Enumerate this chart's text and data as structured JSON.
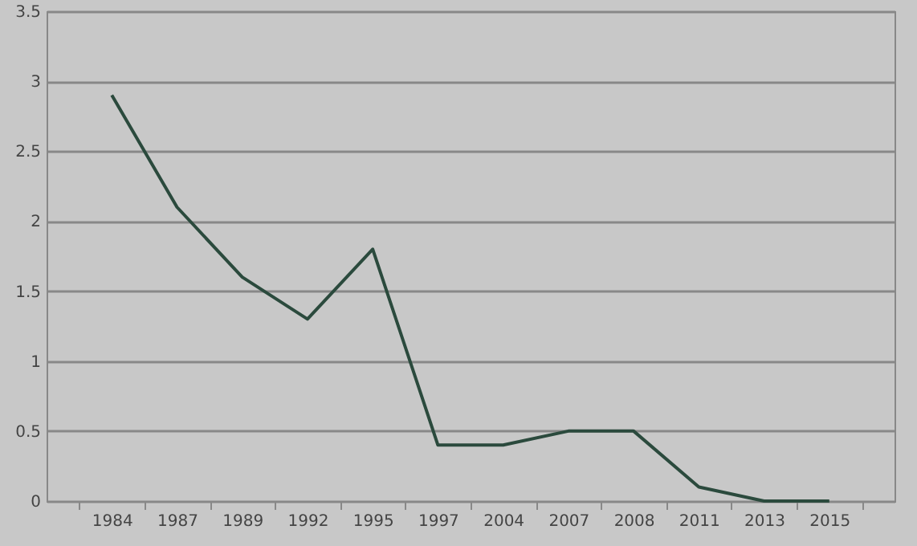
{
  "chart_data": {
    "type": "line",
    "categories": [
      "1984",
      "1987",
      "1989",
      "1992",
      "1995",
      "1997",
      "2004",
      "2007",
      "2008",
      "2011",
      "2013",
      "2015"
    ],
    "series": [
      {
        "color": "#2b4a3d",
        "values": [
          2.9,
          2.1,
          1.6,
          1.3,
          1.8,
          0.4,
          0.4,
          0.5,
          0.5,
          0.1,
          0,
          0
        ]
      }
    ],
    "ylim": [
      0,
      3.5
    ],
    "yticks": [
      0,
      0.5,
      1,
      1.5,
      2,
      2.5,
      3,
      3.5
    ],
    "grid": "y",
    "marker": "none",
    "line_style": "solid"
  }
}
